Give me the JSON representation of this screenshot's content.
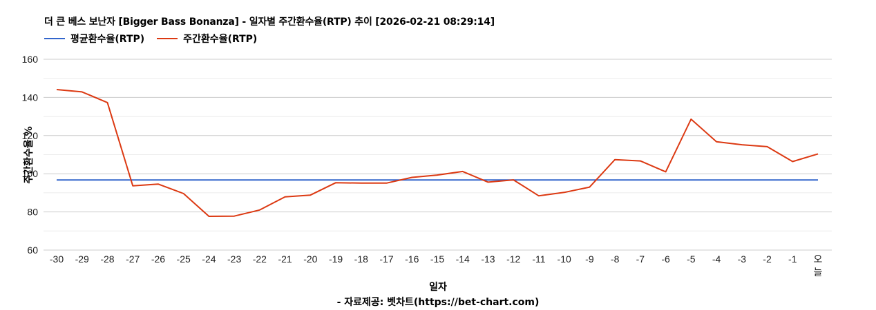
{
  "title": "더 큰 베스 보난자 [Bigger Bass Bonanza] - 일자별 주간환수율(RTP) 추이 [2026-02-21 08:29:14]",
  "legend": [
    {
      "label": "평균환수율(RTP)",
      "color": "#3366cc"
    },
    {
      "label": "주간환수율(RTP)",
      "color": "#dc3912"
    }
  ],
  "x_axis_title": "일자",
  "y_axis_title": "주간환수율 %",
  "source": "- 자료제공: 벳차트(https://bet-chart.com)",
  "chart_data": {
    "type": "line",
    "title": "더 큰 베스 보난자 [Bigger Bass Bonanza] - 일자별 주간환수율(RTP) 추이 [2026-02-21 08:29:14]",
    "xlabel": "일자",
    "ylabel": "주간환수율 %",
    "ylim": [
      60,
      160
    ],
    "yticks": [
      60,
      80,
      100,
      120,
      140,
      160
    ],
    "grid": true,
    "legend_position": "top",
    "categories": [
      "-30",
      "-29",
      "-28",
      "-27",
      "-26",
      "-25",
      "-24",
      "-23",
      "-22",
      "-21",
      "-20",
      "-19",
      "-18",
      "-17",
      "-16",
      "-15",
      "-14",
      "-13",
      "-12",
      "-11",
      "-10",
      "-9",
      "-8",
      "-7",
      "-6",
      "-5",
      "-4",
      "-3",
      "-2",
      "-1",
      "오늘"
    ],
    "series": [
      {
        "name": "평균환수율(RTP)",
        "color": "#3366cc",
        "values": [
          96.7,
          96.7,
          96.7,
          96.7,
          96.7,
          96.7,
          96.7,
          96.7,
          96.7,
          96.7,
          96.7,
          96.7,
          96.7,
          96.7,
          96.7,
          96.7,
          96.7,
          96.7,
          96.7,
          96.7,
          96.7,
          96.7,
          96.7,
          96.7,
          96.7,
          96.7,
          96.7,
          96.7,
          96.7,
          96.7,
          96.7
        ]
      },
      {
        "name": "주간환수율(RTP)",
        "color": "#dc3912",
        "values": [
          144.1,
          142.9,
          137.3,
          93.7,
          94.6,
          89.6,
          77.7,
          77.8,
          81.0,
          87.9,
          88.8,
          95.3,
          95.1,
          95.1,
          98.1,
          99.3,
          101.2,
          95.6,
          96.8,
          88.4,
          90.2,
          93.0,
          107.4,
          106.7,
          101.0,
          128.6,
          116.8,
          115.2,
          114.2,
          106.4,
          110.4
        ]
      }
    ]
  }
}
